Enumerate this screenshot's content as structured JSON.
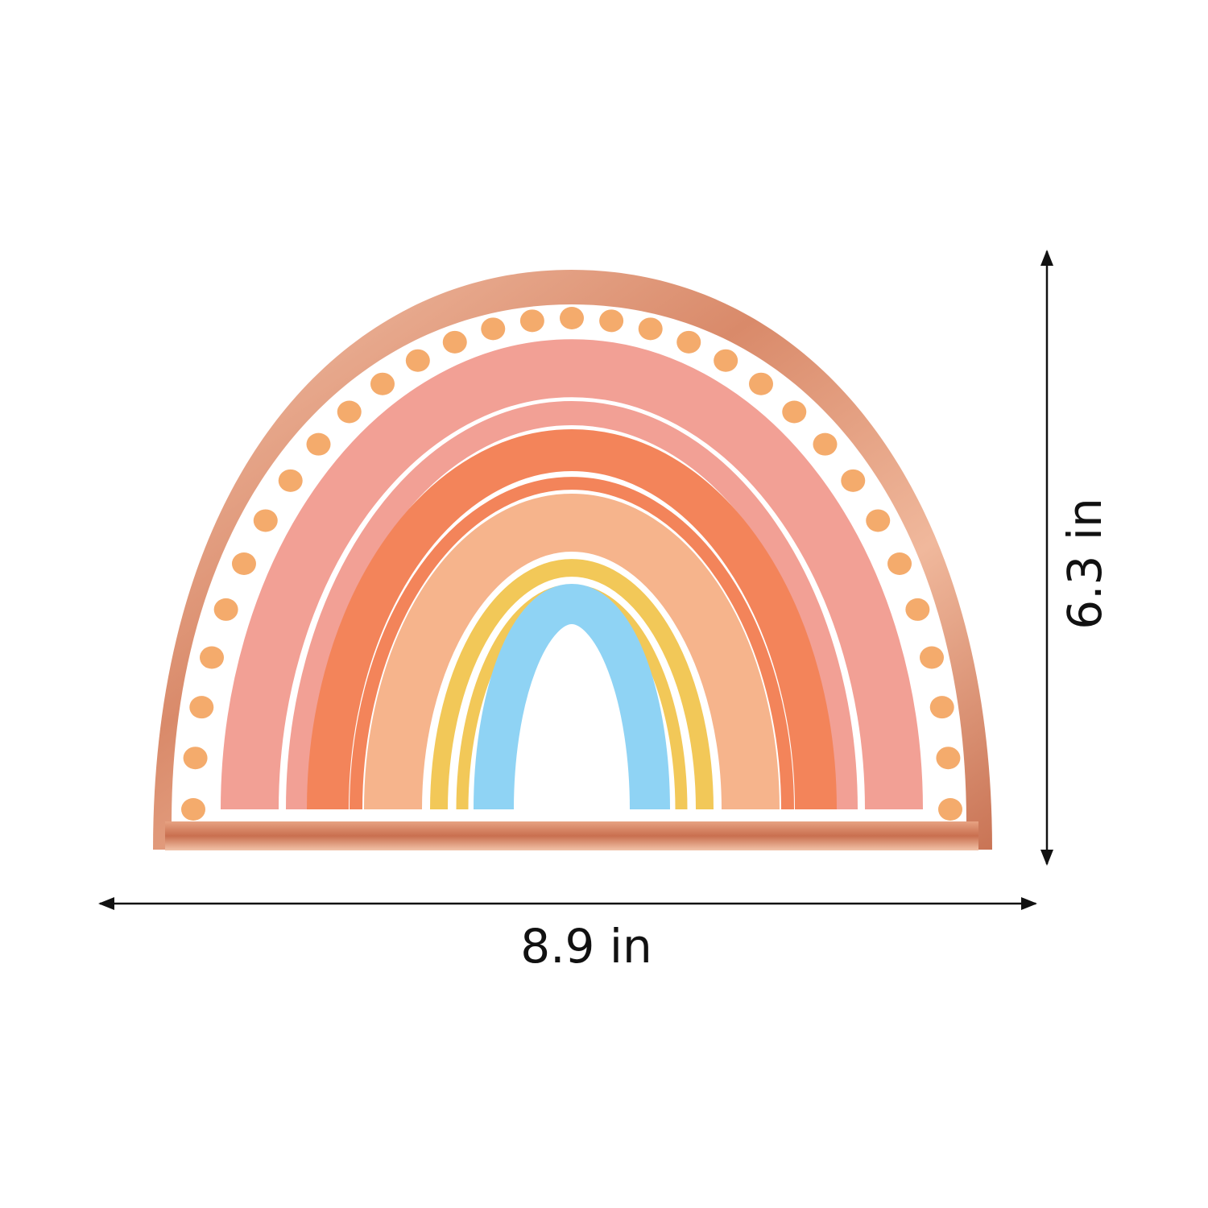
{
  "width_label": "8.9 in",
  "height_label": "6.3 in"
}
